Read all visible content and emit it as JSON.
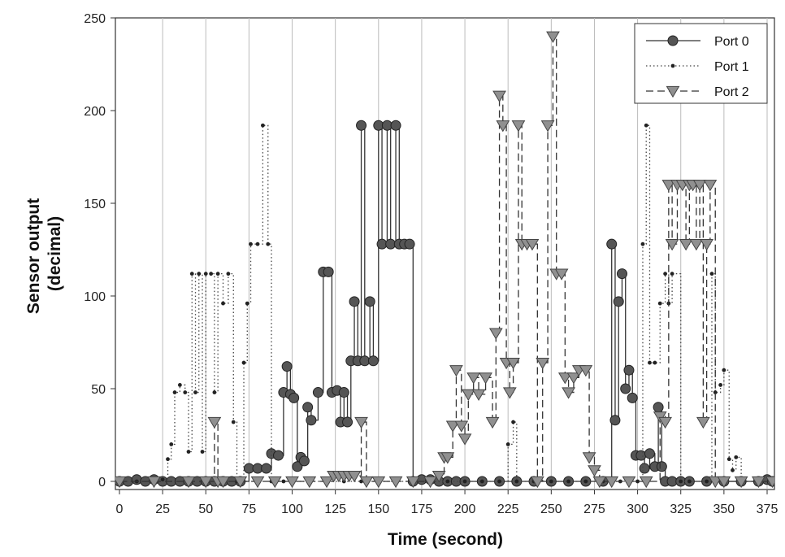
{
  "chart_data": {
    "type": "line",
    "title": "",
    "xlabel": "Time (second)",
    "ylabel_lines": [
      "Sensor output",
      "(decimal)"
    ],
    "xlim": [
      0,
      380
    ],
    "ylim": [
      0,
      250
    ],
    "xticks": [
      0,
      25,
      50,
      75,
      100,
      125,
      150,
      175,
      200,
      225,
      250,
      275,
      300,
      325,
      350,
      375
    ],
    "yticks": [
      0,
      50,
      100,
      150,
      200,
      250
    ],
    "grid": "vertical",
    "legend_position": "top-right",
    "series": [
      {
        "name": "Port 0",
        "style": "solid",
        "marker": "circle",
        "points": [
          [
            0,
            0
          ],
          [
            5,
            0
          ],
          [
            10,
            1
          ],
          [
            15,
            0
          ],
          [
            20,
            1
          ],
          [
            25,
            0
          ],
          [
            30,
            0
          ],
          [
            35,
            0
          ],
          [
            40,
            0
          ],
          [
            45,
            0
          ],
          [
            50,
            0
          ],
          [
            55,
            0
          ],
          [
            60,
            0
          ],
          [
            65,
            0
          ],
          [
            70,
            0
          ],
          [
            75,
            7
          ],
          [
            80,
            7
          ],
          [
            85,
            7
          ],
          [
            88,
            15
          ],
          [
            92,
            14
          ],
          [
            95,
            48
          ],
          [
            97,
            62
          ],
          [
            99,
            47
          ],
          [
            101,
            45
          ],
          [
            103,
            8
          ],
          [
            105,
            13
          ],
          [
            107,
            11
          ],
          [
            109,
            40
          ],
          [
            111,
            33
          ],
          [
            115,
            48
          ],
          [
            118,
            113
          ],
          [
            121,
            113
          ],
          [
            123,
            48
          ],
          [
            126,
            49
          ],
          [
            128,
            32
          ],
          [
            130,
            48
          ],
          [
            132,
            32
          ],
          [
            134,
            65
          ],
          [
            136,
            97
          ],
          [
            138,
            65
          ],
          [
            140,
            192
          ],
          [
            142,
            65
          ],
          [
            145,
            97
          ],
          [
            147,
            65
          ],
          [
            150,
            192
          ],
          [
            152,
            128
          ],
          [
            155,
            192
          ],
          [
            157,
            128
          ],
          [
            160,
            192
          ],
          [
            162,
            128
          ],
          [
            165,
            128
          ],
          [
            168,
            128
          ],
          [
            170,
            0
          ],
          [
            175,
            1
          ],
          [
            180,
            1
          ],
          [
            185,
            0
          ],
          [
            190,
            0
          ],
          [
            195,
            0
          ],
          [
            200,
            0
          ],
          [
            210,
            0
          ],
          [
            220,
            0
          ],
          [
            230,
            0
          ],
          [
            240,
            0
          ],
          [
            250,
            0
          ],
          [
            260,
            0
          ],
          [
            270,
            0
          ],
          [
            280,
            0
          ],
          [
            285,
            128
          ],
          [
            287,
            33
          ],
          [
            289,
            97
          ],
          [
            291,
            112
          ],
          [
            293,
            50
          ],
          [
            295,
            60
          ],
          [
            297,
            45
          ],
          [
            299,
            14
          ],
          [
            302,
            14
          ],
          [
            304,
            7
          ],
          [
            307,
            15
          ],
          [
            310,
            8
          ],
          [
            312,
            40
          ],
          [
            314,
            8
          ],
          [
            316,
            0
          ],
          [
            320,
            0
          ],
          [
            325,
            0
          ],
          [
            330,
            0
          ],
          [
            340,
            0
          ],
          [
            350,
            0
          ],
          [
            360,
            0
          ],
          [
            370,
            0
          ],
          [
            375,
            1
          ],
          [
            378,
            0
          ]
        ]
      },
      {
        "name": "Port 1",
        "style": "dotted",
        "marker": "dot",
        "points": [
          [
            0,
            0
          ],
          [
            10,
            0
          ],
          [
            20,
            1
          ],
          [
            25,
            1
          ],
          [
            28,
            12
          ],
          [
            30,
            20
          ],
          [
            32,
            48
          ],
          [
            35,
            52
          ],
          [
            38,
            48
          ],
          [
            40,
            16
          ],
          [
            42,
            112
          ],
          [
            44,
            48
          ],
          [
            46,
            112
          ],
          [
            48,
            16
          ],
          [
            50,
            112
          ],
          [
            53,
            112
          ],
          [
            55,
            48
          ],
          [
            57,
            112
          ],
          [
            60,
            96
          ],
          [
            63,
            112
          ],
          [
            66,
            32
          ],
          [
            68,
            0
          ],
          [
            72,
            64
          ],
          [
            74,
            96
          ],
          [
            76,
            128
          ],
          [
            80,
            128
          ],
          [
            83,
            192
          ],
          [
            86,
            128
          ],
          [
            88,
            0
          ],
          [
            95,
            0
          ],
          [
            100,
            0
          ],
          [
            110,
            0
          ],
          [
            120,
            0
          ],
          [
            130,
            0
          ],
          [
            140,
            0
          ],
          [
            150,
            0
          ],
          [
            160,
            0
          ],
          [
            170,
            0
          ],
          [
            180,
            0
          ],
          [
            190,
            0
          ],
          [
            200,
            0
          ],
          [
            210,
            0
          ],
          [
            220,
            0
          ],
          [
            225,
            20
          ],
          [
            228,
            32
          ],
          [
            230,
            0
          ],
          [
            240,
            0
          ],
          [
            250,
            0
          ],
          [
            260,
            0
          ],
          [
            270,
            0
          ],
          [
            280,
            0
          ],
          [
            290,
            0
          ],
          [
            300,
            0
          ],
          [
            303,
            128
          ],
          [
            305,
            192
          ],
          [
            307,
            64
          ],
          [
            310,
            64
          ],
          [
            313,
            96
          ],
          [
            316,
            112
          ],
          [
            318,
            96
          ],
          [
            320,
            112
          ],
          [
            325,
            0
          ],
          [
            330,
            0
          ],
          [
            340,
            0
          ],
          [
            343,
            112
          ],
          [
            345,
            48
          ],
          [
            348,
            52
          ],
          [
            350,
            60
          ],
          [
            353,
            12
          ],
          [
            355,
            6
          ],
          [
            357,
            13
          ],
          [
            360,
            0
          ],
          [
            370,
            0
          ],
          [
            378,
            0
          ]
        ]
      },
      {
        "name": "Port 2",
        "style": "dashed",
        "marker": "triangle-down",
        "points": [
          [
            0,
            0
          ],
          [
            20,
            0
          ],
          [
            40,
            0
          ],
          [
            50,
            0
          ],
          [
            55,
            32
          ],
          [
            57,
            0
          ],
          [
            60,
            0
          ],
          [
            70,
            0
          ],
          [
            80,
            0
          ],
          [
            90,
            0
          ],
          [
            100,
            0
          ],
          [
            110,
            0
          ],
          [
            120,
            0
          ],
          [
            124,
            3
          ],
          [
            127,
            3
          ],
          [
            130,
            3
          ],
          [
            133,
            3
          ],
          [
            136,
            3
          ],
          [
            140,
            32
          ],
          [
            143,
            0
          ],
          [
            150,
            0
          ],
          [
            160,
            0
          ],
          [
            170,
            0
          ],
          [
            180,
            0
          ],
          [
            185,
            3
          ],
          [
            188,
            13
          ],
          [
            190,
            13
          ],
          [
            193,
            30
          ],
          [
            195,
            60
          ],
          [
            198,
            30
          ],
          [
            200,
            23
          ],
          [
            202,
            47
          ],
          [
            205,
            56
          ],
          [
            208,
            47
          ],
          [
            212,
            56
          ],
          [
            216,
            32
          ],
          [
            218,
            80
          ],
          [
            220,
            208
          ],
          [
            222,
            192
          ],
          [
            224,
            64
          ],
          [
            226,
            48
          ],
          [
            228,
            64
          ],
          [
            231,
            192
          ],
          [
            233,
            128
          ],
          [
            236,
            128
          ],
          [
            239,
            128
          ],
          [
            242,
            0
          ],
          [
            245,
            64
          ],
          [
            248,
            192
          ],
          [
            251,
            240
          ],
          [
            253,
            112
          ],
          [
            256,
            112
          ],
          [
            258,
            56
          ],
          [
            260,
            48
          ],
          [
            263,
            56
          ],
          [
            266,
            60
          ],
          [
            270,
            60
          ],
          [
            272,
            13
          ],
          [
            275,
            6
          ],
          [
            278,
            0
          ],
          [
            285,
            0
          ],
          [
            295,
            0
          ],
          [
            305,
            0
          ],
          [
            313,
            35
          ],
          [
            316,
            32
          ],
          [
            318,
            160
          ],
          [
            320,
            128
          ],
          [
            323,
            160
          ],
          [
            326,
            160
          ],
          [
            328,
            128
          ],
          [
            330,
            160
          ],
          [
            332,
            160
          ],
          [
            334,
            128
          ],
          [
            336,
            160
          ],
          [
            338,
            32
          ],
          [
            340,
            128
          ],
          [
            342,
            160
          ],
          [
            345,
            0
          ],
          [
            350,
            0
          ],
          [
            360,
            0
          ],
          [
            370,
            0
          ],
          [
            378,
            0
          ]
        ]
      }
    ]
  }
}
